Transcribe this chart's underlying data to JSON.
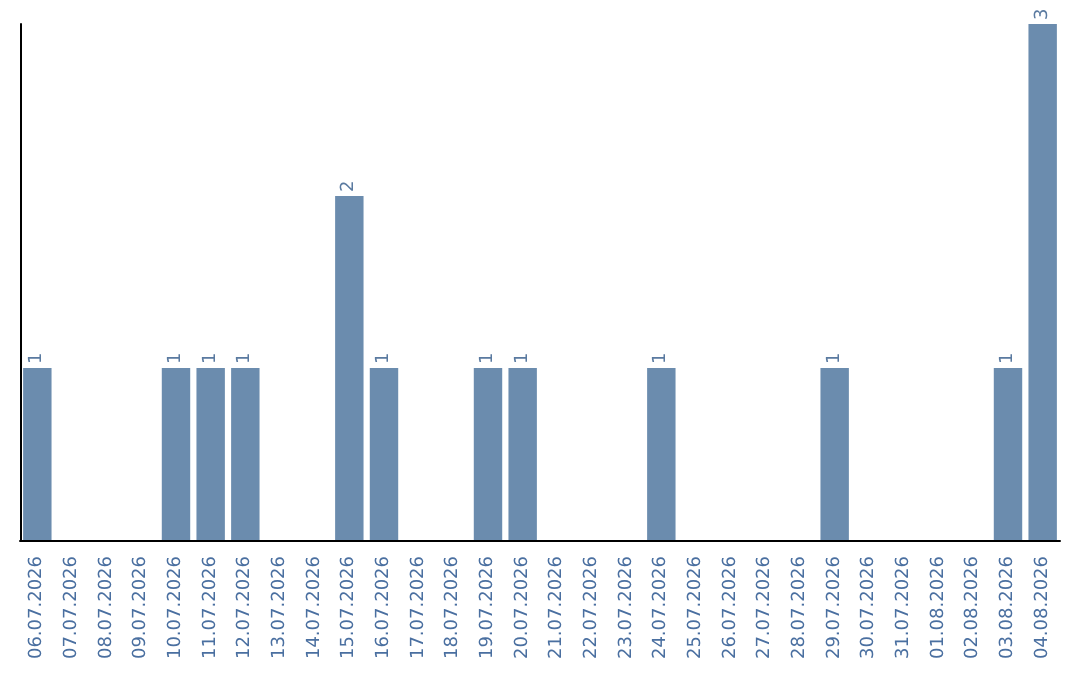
{
  "chart_data": {
    "type": "bar",
    "categories": [
      "06.07.2026",
      "07.07.2026",
      "08.07.2026",
      "09.07.2026",
      "10.07.2026",
      "11.07.2026",
      "12.07.2026",
      "13.07.2026",
      "14.07.2026",
      "15.07.2026",
      "16.07.2026",
      "17.07.2026",
      "18.07.2026",
      "19.07.2026",
      "20.07.2026",
      "21.07.2026",
      "22.07.2026",
      "23.07.2026",
      "24.07.2026",
      "25.07.2026",
      "26.07.2026",
      "27.07.2026",
      "28.07.2026",
      "29.07.2026",
      "30.07.2026",
      "31.07.2026",
      "01.08.2026",
      "02.08.2026",
      "03.08.2026",
      "04.08.2026"
    ],
    "values": [
      1,
      0,
      0,
      0,
      1,
      1,
      1,
      0,
      0,
      2,
      1,
      0,
      0,
      1,
      1,
      0,
      0,
      0,
      1,
      0,
      0,
      0,
      0,
      1,
      0,
      0,
      0,
      0,
      1,
      3
    ],
    "value_labels": [
      "1",
      null,
      null,
      null,
      "1",
      "1",
      "1",
      null,
      null,
      "2",
      "1",
      null,
      null,
      "1",
      "1",
      null,
      null,
      null,
      "1",
      null,
      null,
      null,
      null,
      "1",
      null,
      null,
      null,
      null,
      "1",
      "3"
    ],
    "color": "#6b8cae",
    "tick_labels": "x"
  }
}
